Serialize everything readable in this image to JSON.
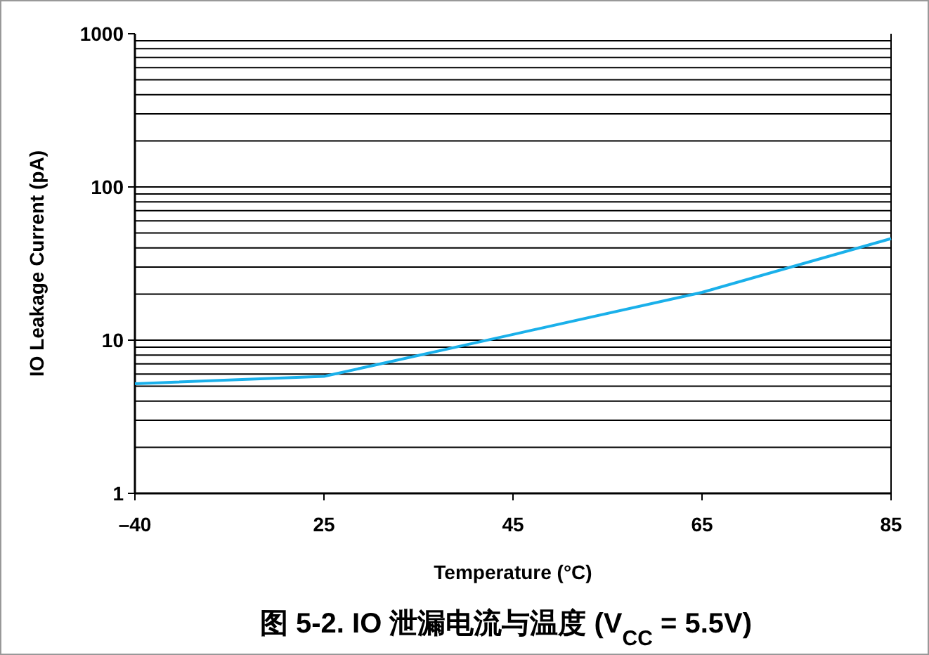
{
  "chart_data": {
    "type": "line",
    "title": "图 5-2. IO 泄漏电流与温度 (V$_{CC}$ = 5.5V)",
    "xlabel": "Temperature (°C)",
    "ylabel": "IO Leakage Current (pA)",
    "categories": [
      "–40",
      "25",
      "45",
      "65",
      "85"
    ],
    "series": [
      {
        "color": "#1ab0ea",
        "values": [
          5.2,
          5.8,
          10.9,
          20.5,
          46
        ]
      }
    ],
    "log": "y",
    "ylim": [
      1,
      1000
    ],
    "yticks": [
      1,
      10,
      100,
      1000
    ],
    "grid": "y",
    "marker": "none",
    "line_style": "solid"
  }
}
